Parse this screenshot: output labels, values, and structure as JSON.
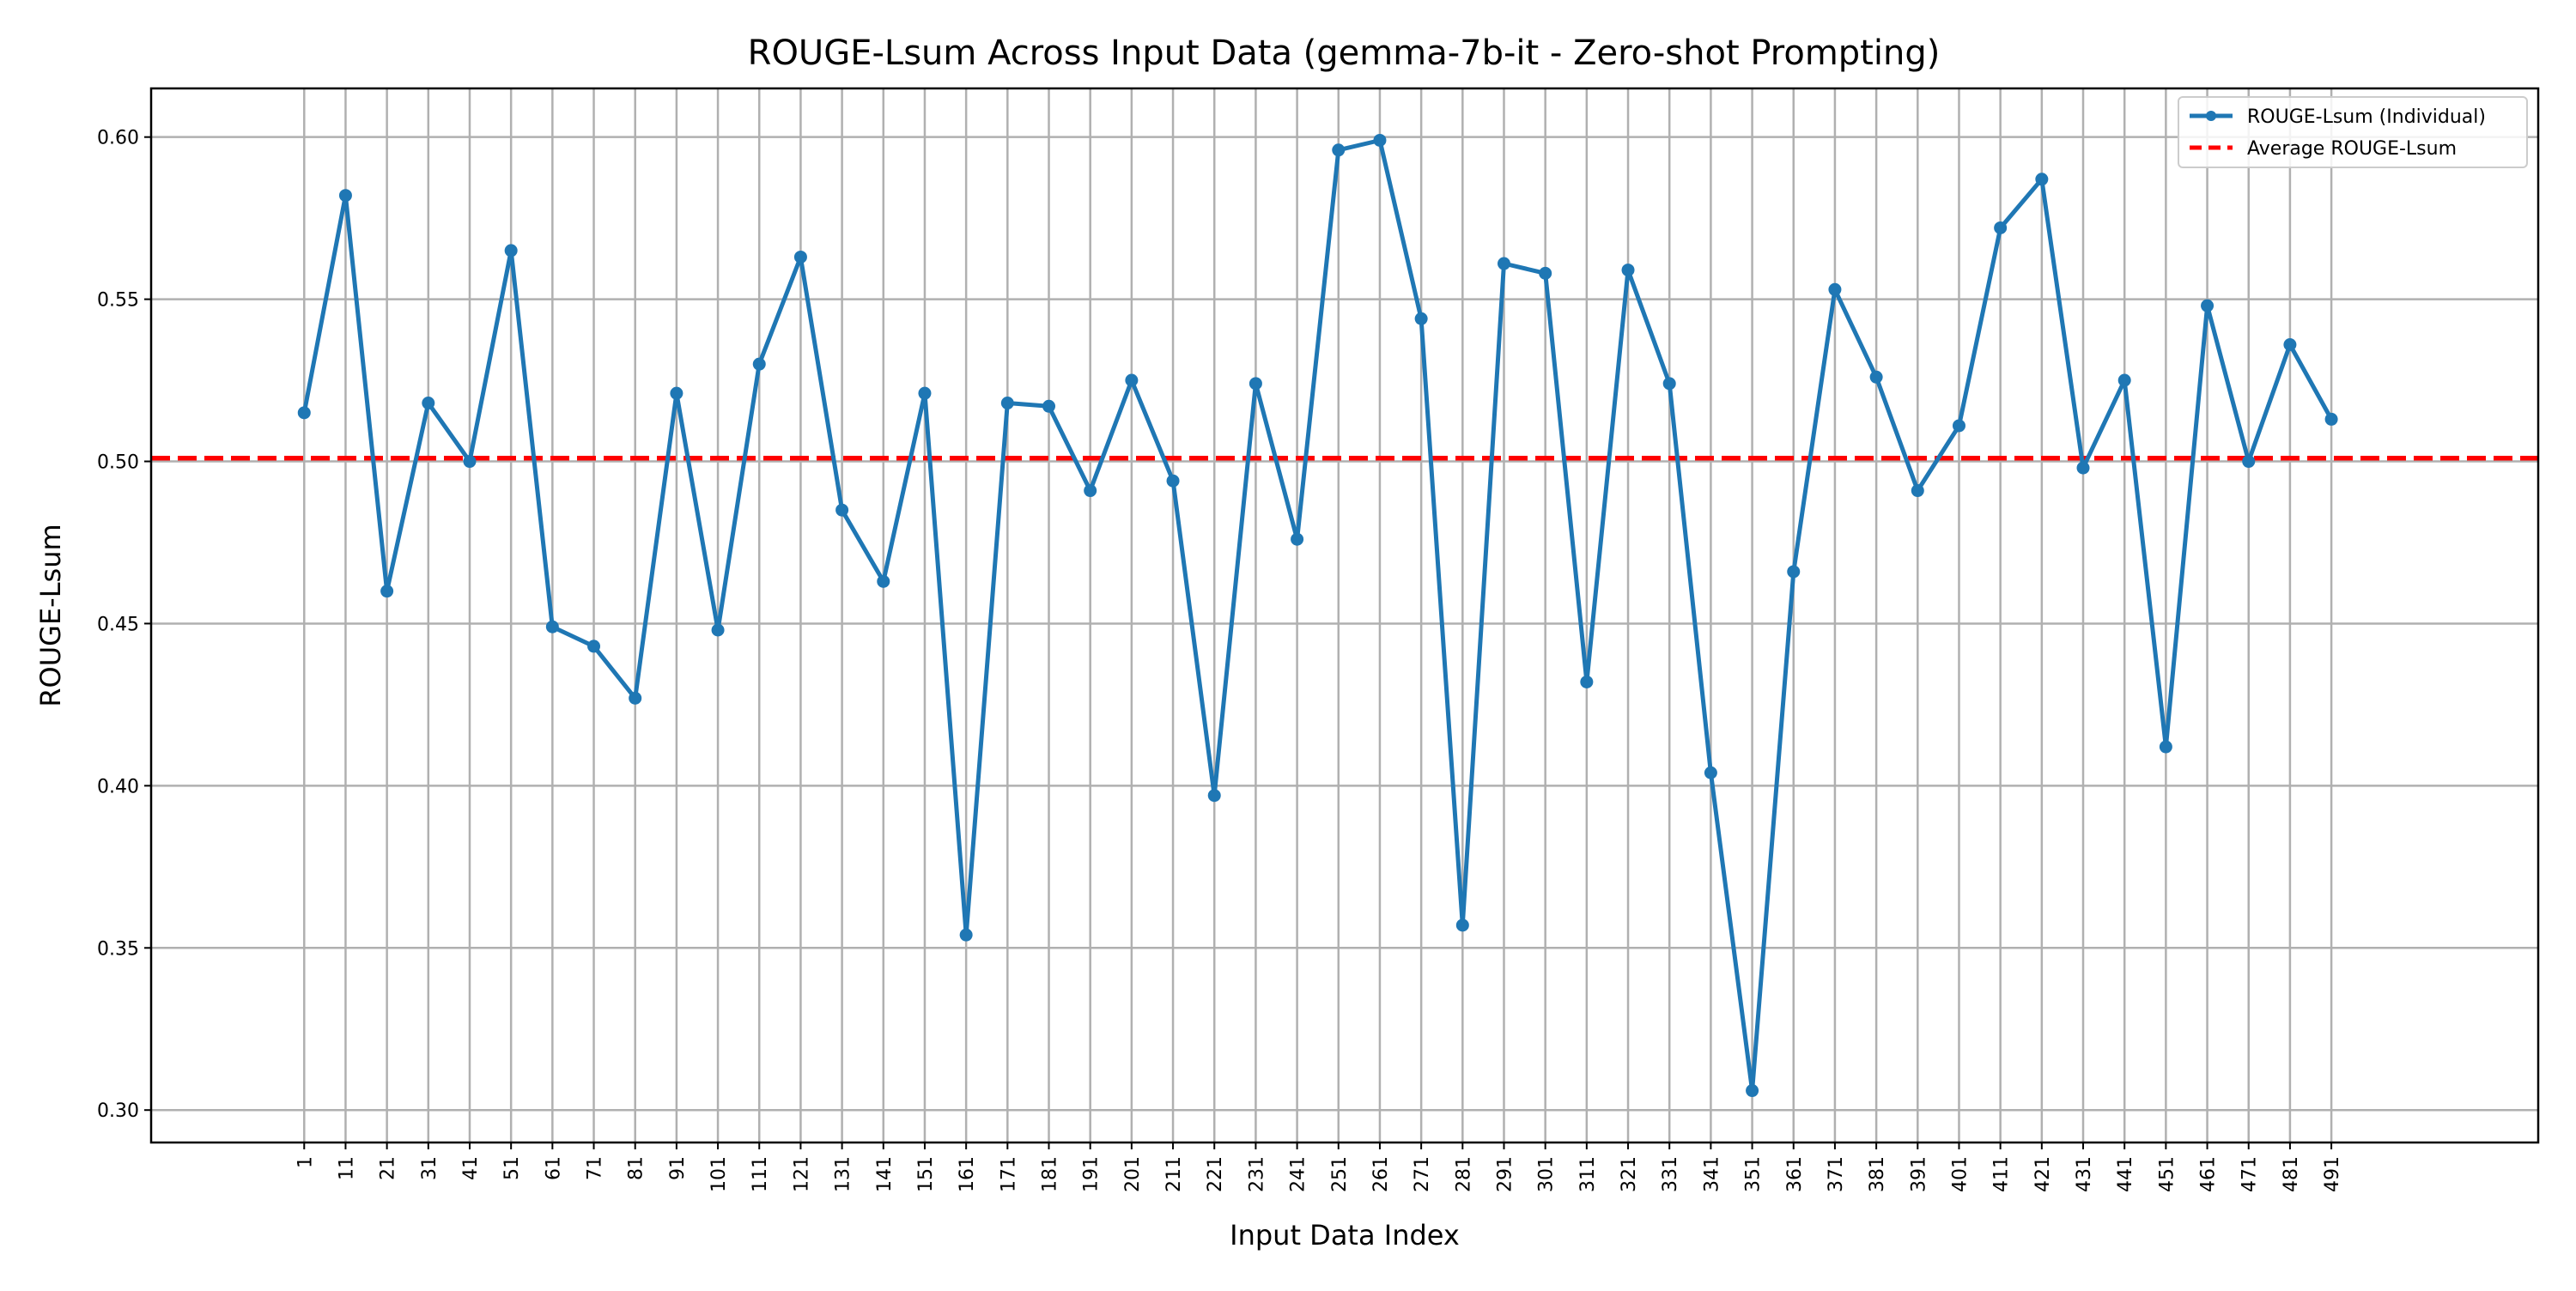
{
  "chart_data": {
    "type": "line",
    "title": "ROUGE-Lsum Across Input Data (gemma-7b-it - Zero-shot Prompting)",
    "xlabel": "Input Data Index",
    "ylabel": "ROUGE-Lsum",
    "x": [
      1,
      11,
      21,
      31,
      41,
      51,
      61,
      71,
      81,
      91,
      101,
      111,
      121,
      131,
      141,
      151,
      161,
      171,
      181,
      191,
      201,
      211,
      221,
      231,
      241,
      251,
      261,
      271,
      281,
      291,
      301,
      311,
      321,
      331,
      341,
      351,
      361,
      371,
      381,
      391,
      401,
      411,
      421,
      431,
      441,
      451,
      461,
      471,
      481,
      491
    ],
    "x_tick_labels": [
      "1",
      "11",
      "21",
      "31",
      "41",
      "51",
      "61",
      "71",
      "81",
      "91",
      "101",
      "111",
      "121",
      "131",
      "141",
      "151",
      "161",
      "171",
      "181",
      "191",
      "201",
      "211",
      "221",
      "231",
      "241",
      "251",
      "261",
      "271",
      "281",
      "291",
      "301",
      "311",
      "321",
      "331",
      "341",
      "351",
      "361",
      "371",
      "381",
      "391",
      "401",
      "411",
      "421",
      "431",
      "441",
      "451",
      "461",
      "471",
      "481",
      "491"
    ],
    "series": [
      {
        "name": "ROUGE-Lsum (Individual)",
        "color": "#1f77b4",
        "style": "solid line with circle markers",
        "values": [
          0.515,
          0.582,
          0.46,
          0.518,
          0.5,
          0.565,
          0.449,
          0.443,
          0.427,
          0.521,
          0.448,
          0.53,
          0.563,
          0.485,
          0.463,
          0.521,
          0.354,
          0.518,
          0.517,
          0.491,
          0.525,
          0.494,
          0.397,
          0.524,
          0.476,
          0.596,
          0.599,
          0.544,
          0.357,
          0.561,
          0.558,
          0.432,
          0.559,
          0.524,
          0.404,
          0.306,
          0.466,
          0.553,
          0.526,
          0.491,
          0.511,
          0.572,
          0.587,
          0.498,
          0.525,
          0.412,
          0.548,
          0.5,
          0.536,
          0.513
        ]
      },
      {
        "name": "Average ROUGE-Lsum",
        "color": "#ff0000",
        "style": "dashed horizontal line",
        "value": 0.501
      }
    ],
    "ylim": [
      0.29,
      0.615
    ],
    "xlim": [
      -36,
      541
    ],
    "y_ticks": [
      0.3,
      0.35,
      0.4,
      0.45,
      0.5,
      0.55,
      0.6
    ],
    "y_tick_labels": [
      "0.30",
      "0.35",
      "0.40",
      "0.45",
      "0.50",
      "0.55",
      "0.60"
    ],
    "grid": true,
    "legend_position": "top-right"
  }
}
